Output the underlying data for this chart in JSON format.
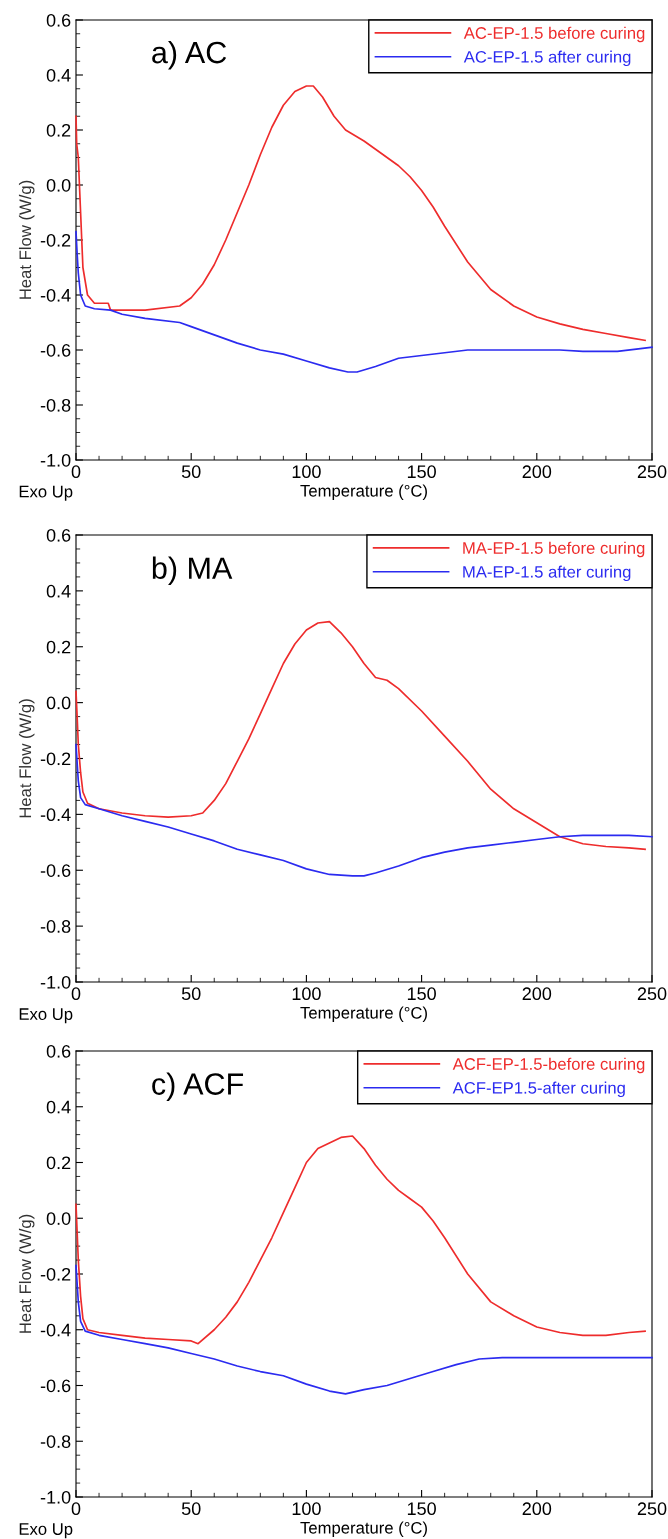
{
  "chart_data": [
    {
      "type": "line",
      "title": "a) AC",
      "xlabel": "Temperature (°C)",
      "ylabel": "Heat Flow (W/g)",
      "annotations": [
        "Exo Up"
      ],
      "xlim": [
        0,
        250
      ],
      "ylim": [
        -1.0,
        0.6
      ],
      "xticks": [
        0,
        50,
        100,
        150,
        200,
        250
      ],
      "yticks": [
        {
          "value": -1.0,
          "label": "-1.0"
        },
        {
          "value": -0.8,
          "label": "-0.8"
        },
        {
          "value": -0.6,
          "label": "-0.6"
        },
        {
          "value": -0.4,
          "label": "-0.4"
        },
        {
          "value": -0.2,
          "label": "-0.2"
        },
        {
          "value": 0.0,
          "label": "0.0"
        },
        {
          "value": 0.2,
          "label": "0.2"
        },
        {
          "value": 0.4,
          "label": "0.4"
        },
        {
          "value": 0.6,
          "label": "0.6"
        }
      ],
      "grid": false,
      "legend": "top right",
      "marker": "none",
      "line_style": "solid",
      "series": [
        {
          "name": "AC-EP-1.5 before curing",
          "color": "#ee2c2c",
          "x": [
            0,
            0.3,
            1,
            2,
            3,
            5,
            8,
            14,
            15,
            30,
            45,
            50,
            55,
            60,
            65,
            70,
            75,
            80,
            85,
            90,
            95,
            100,
            103,
            107,
            112,
            117,
            125,
            130,
            140,
            145,
            150,
            155,
            160,
            170,
            180,
            190,
            200,
            210,
            220,
            230,
            240,
            247
          ],
          "values": [
            0.25,
            0.15,
            0.1,
            -0.1,
            -0.3,
            -0.4,
            -0.43,
            -0.43,
            -0.455,
            -0.455,
            -0.44,
            -0.41,
            -0.36,
            -0.29,
            -0.2,
            -0.1,
            0.0,
            0.11,
            0.21,
            0.29,
            0.34,
            0.36,
            0.36,
            0.32,
            0.25,
            0.2,
            0.16,
            0.13,
            0.07,
            0.03,
            -0.02,
            -0.08,
            -0.15,
            -0.28,
            -0.38,
            -0.44,
            -0.48,
            -0.505,
            -0.525,
            -0.54,
            -0.555,
            -0.565
          ]
        },
        {
          "name": "AC-EP-1.5 after curing",
          "color": "#2b2bf0",
          "x": [
            0,
            0.5,
            1,
            2,
            4,
            8,
            15,
            20,
            30,
            45,
            50,
            60,
            70,
            80,
            90,
            100,
            110,
            118,
            122,
            130,
            140,
            150,
            160,
            170,
            200,
            210,
            220,
            235,
            245,
            250
          ],
          "values": [
            -0.17,
            -0.25,
            -0.32,
            -0.4,
            -0.44,
            -0.45,
            -0.455,
            -0.47,
            -0.485,
            -0.5,
            -0.515,
            -0.545,
            -0.575,
            -0.6,
            -0.615,
            -0.64,
            -0.665,
            -0.68,
            -0.68,
            -0.66,
            -0.63,
            -0.62,
            -0.61,
            -0.6,
            -0.6,
            -0.6,
            -0.605,
            -0.605,
            -0.595,
            -0.59
          ]
        }
      ]
    },
    {
      "type": "line",
      "title": "b) MA",
      "xlabel": "Temperature (°C)",
      "ylabel": "Heat Flow (W/g)",
      "annotations": [
        "Exo Up"
      ],
      "xlim": [
        0,
        250
      ],
      "ylim": [
        -1.0,
        0.6
      ],
      "xticks": [
        0,
        50,
        100,
        150,
        200,
        250
      ],
      "yticks": [
        {
          "value": -1.0,
          "label": "-1.0"
        },
        {
          "value": -0.8,
          "label": "-0.8"
        },
        {
          "value": -0.6,
          "label": "-0.6"
        },
        {
          "value": -0.4,
          "label": "-0.4"
        },
        {
          "value": -0.2,
          "label": "-0.2"
        },
        {
          "value": 0.0,
          "label": "0.0"
        },
        {
          "value": 0.2,
          "label": "0.2"
        },
        {
          "value": 0.4,
          "label": "0.4"
        },
        {
          "value": 0.6,
          "label": "0.6"
        }
      ],
      "grid": false,
      "legend": "top right",
      "marker": "none",
      "line_style": "solid",
      "series": [
        {
          "name": "MA-EP-1.5 before curing",
          "color": "#ee2c2c",
          "x": [
            0,
            0.5,
            1,
            2,
            3,
            5,
            10,
            20,
            30,
            40,
            50,
            55,
            60,
            65,
            70,
            75,
            80,
            85,
            90,
            95,
            100,
            105,
            110,
            115,
            120,
            125,
            130,
            135,
            140,
            150,
            160,
            170,
            180,
            190,
            200,
            210,
            220,
            230,
            240,
            247
          ],
          "values": [
            0.04,
            -0.05,
            -0.15,
            -0.25,
            -0.32,
            -0.36,
            -0.38,
            -0.395,
            -0.405,
            -0.41,
            -0.405,
            -0.395,
            -0.35,
            -0.29,
            -0.21,
            -0.13,
            -0.04,
            0.05,
            0.14,
            0.21,
            0.26,
            0.285,
            0.29,
            0.25,
            0.2,
            0.14,
            0.09,
            0.08,
            0.05,
            -0.03,
            -0.12,
            -0.21,
            -0.31,
            -0.38,
            -0.43,
            -0.48,
            -0.505,
            -0.515,
            -0.52,
            -0.525
          ]
        },
        {
          "name": "MA-EP-1.5 after curing",
          "color": "#2b2bf0",
          "x": [
            0,
            1,
            2,
            4,
            10,
            20,
            30,
            40,
            50,
            60,
            70,
            80,
            90,
            100,
            110,
            120,
            125,
            130,
            140,
            150,
            160,
            170,
            180,
            190,
            200,
            210,
            220,
            240,
            250
          ],
          "values": [
            -0.15,
            -0.28,
            -0.34,
            -0.365,
            -0.38,
            -0.405,
            -0.425,
            -0.445,
            -0.47,
            -0.495,
            -0.525,
            -0.545,
            -0.565,
            -0.595,
            -0.615,
            -0.62,
            -0.62,
            -0.61,
            -0.585,
            -0.555,
            -0.535,
            -0.52,
            -0.51,
            -0.5,
            -0.49,
            -0.48,
            -0.475,
            -0.475,
            -0.48
          ]
        }
      ]
    },
    {
      "type": "line",
      "title": "c) ACF",
      "xlabel": "Temperature (°C)",
      "ylabel": "Heat Flow (W/g)",
      "annotations": [
        "Exo Up"
      ],
      "xlim": [
        0,
        250
      ],
      "ylim": [
        -1.0,
        0.6
      ],
      "xticks": [
        0,
        50,
        100,
        150,
        200,
        250
      ],
      "yticks": [
        {
          "value": -1.0,
          "label": "-1.0"
        },
        {
          "value": -0.8,
          "label": "-0.8"
        },
        {
          "value": -0.6,
          "label": "-0.6"
        },
        {
          "value": -0.4,
          "label": "-0.4"
        },
        {
          "value": -0.2,
          "label": "-0.2"
        },
        {
          "value": 0.0,
          "label": "0.0"
        },
        {
          "value": 0.2,
          "label": "0.2"
        },
        {
          "value": 0.4,
          "label": "0.4"
        },
        {
          "value": 0.6,
          "label": "0.6"
        }
      ],
      "grid": false,
      "legend": "top right",
      "marker": "none",
      "line_style": "solid",
      "series": [
        {
          "name": "ACF-EP-1.5-before curing",
          "color": "#ee2c2c",
          "x": [
            0,
            0.5,
            1,
            2,
            3,
            5,
            10,
            20,
            30,
            40,
            50,
            53,
            60,
            65,
            70,
            75,
            80,
            85,
            90,
            95,
            100,
            105,
            110,
            115,
            120,
            125,
            130,
            135,
            140,
            145,
            150,
            155,
            160,
            170,
            180,
            190,
            200,
            210,
            220,
            230,
            240,
            247
          ],
          "values": [
            0.05,
            -0.05,
            -0.15,
            -0.28,
            -0.36,
            -0.4,
            -0.41,
            -0.42,
            -0.43,
            -0.435,
            -0.44,
            -0.45,
            -0.4,
            -0.355,
            -0.3,
            -0.23,
            -0.15,
            -0.07,
            0.02,
            0.11,
            0.2,
            0.25,
            0.27,
            0.29,
            0.295,
            0.25,
            0.19,
            0.14,
            0.1,
            0.07,
            0.04,
            -0.01,
            -0.07,
            -0.2,
            -0.3,
            -0.35,
            -0.39,
            -0.41,
            -0.42,
            -0.42,
            -0.41,
            -0.405
          ]
        },
        {
          "name": "ACF-EP1.5-after curing",
          "color": "#2b2bf0",
          "x": [
            0,
            1,
            2,
            4,
            10,
            20,
            30,
            40,
            50,
            60,
            70,
            80,
            90,
            100,
            110,
            117,
            125,
            135,
            145,
            155,
            165,
            175,
            185,
            200,
            250
          ],
          "values": [
            -0.17,
            -0.3,
            -0.37,
            -0.405,
            -0.42,
            -0.435,
            -0.45,
            -0.465,
            -0.485,
            -0.505,
            -0.53,
            -0.55,
            -0.565,
            -0.595,
            -0.62,
            -0.63,
            -0.615,
            -0.6,
            -0.575,
            -0.55,
            -0.525,
            -0.505,
            -0.5,
            -0.5,
            -0.5
          ]
        }
      ]
    }
  ]
}
